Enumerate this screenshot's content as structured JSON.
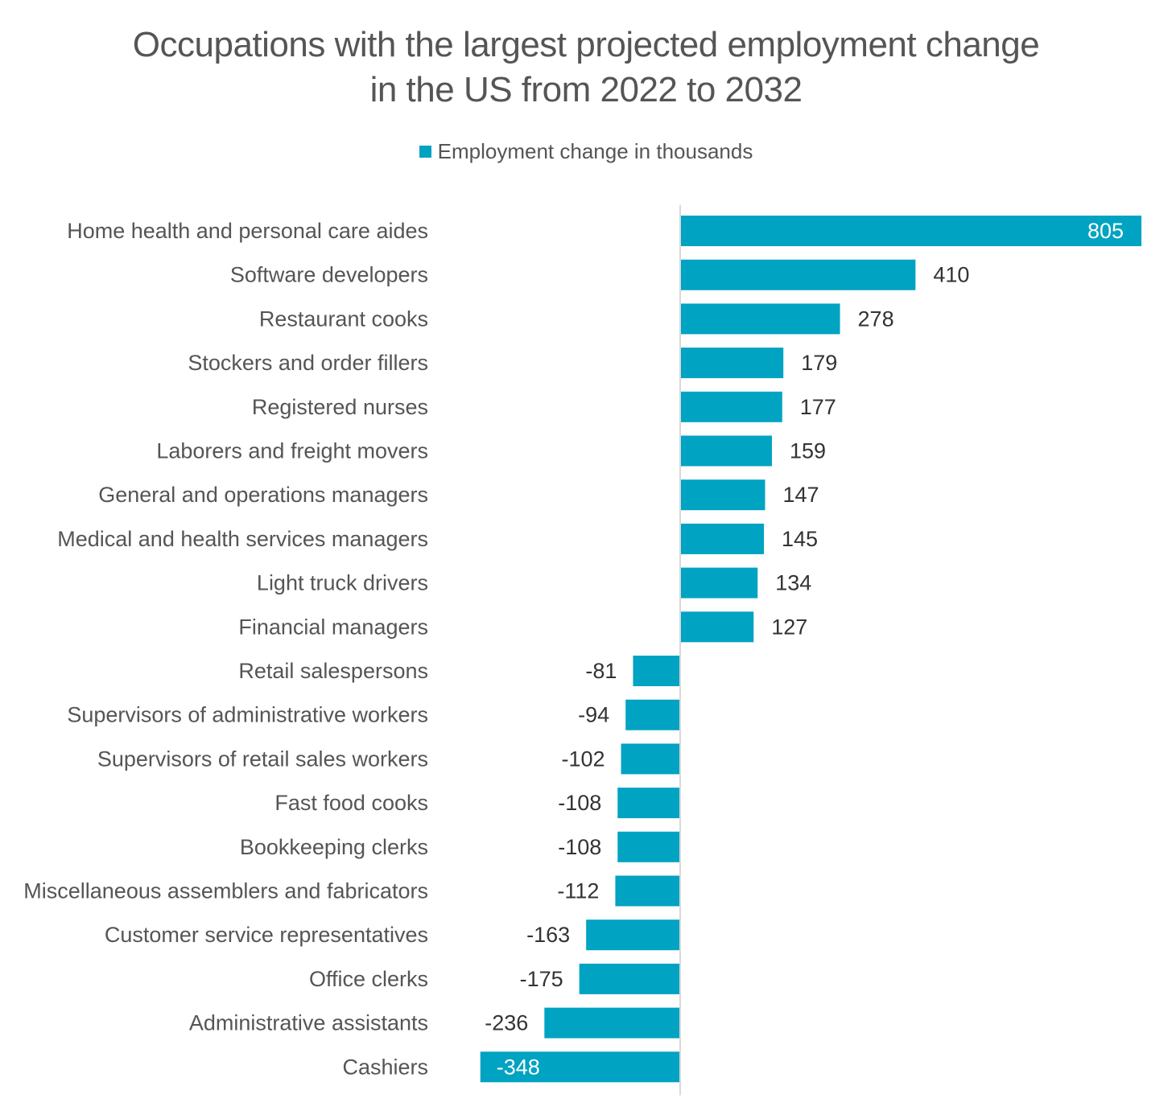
{
  "chart_data": {
    "type": "bar",
    "orientation": "horizontal",
    "title": [
      "Occupations with the largest projected employment change",
      "in the US from 2022 to 2032"
    ],
    "legend": {
      "placement": "top-center"
    },
    "grid": false,
    "xlim": [
      -348,
      805
    ],
    "categories": [
      "Home health and personal care aides",
      "Software developers",
      "Restaurant cooks",
      "Stockers and order fillers",
      "Registered nurses",
      "Laborers and freight movers",
      "General and operations managers",
      "Medical and health services managers",
      "Light truck drivers",
      "Financial managers",
      "Retail salespersons",
      "Supervisors of administrative workers",
      "Supervisors of retail sales workers",
      "Fast food cooks",
      "Bookkeeping clerks",
      "Miscellaneous assemblers and fabricators",
      "Customer service representatives",
      "Office clerks",
      "Administrative assistants",
      "Cashiers"
    ],
    "series": [
      {
        "name": "Employment change in thousands",
        "color": "#00a3c1",
        "values": [
          805,
          410,
          278,
          179,
          177,
          159,
          147,
          145,
          134,
          127,
          -81,
          -94,
          -102,
          -108,
          -108,
          -112,
          -163,
          -175,
          -236,
          -348
        ]
      }
    ],
    "colors": {
      "bar": "#00a3c1",
      "text": "#555555",
      "label_outside": "#333333",
      "label_inside": "#ffffff",
      "axis": "#d9d9d9"
    }
  }
}
